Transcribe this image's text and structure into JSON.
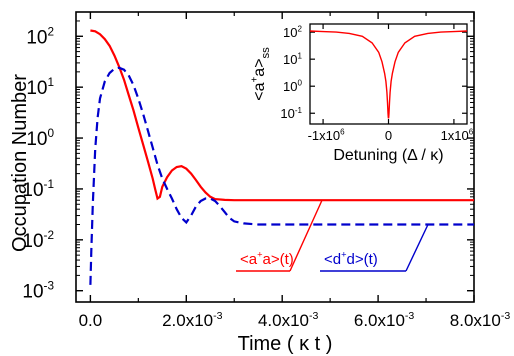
{
  "chart_data": [
    {
      "type": "line",
      "scale": "log-y",
      "xlabel": "Time ( κ t )",
      "ylabel": "Occupation Number",
      "xlim": [
        -0.0003,
        0.008
      ],
      "ylim": [
        0.0006,
        300
      ],
      "xticks": [
        0,
        0.002,
        0.004,
        0.006,
        0.008
      ],
      "xtick_labels": [
        "0.0",
        "2.0x10",
        "4.0x10",
        "6.0x10",
        "8.0x10"
      ],
      "xtick_exp": [
        "",
        "-3",
        "-3",
        "-3",
        "-3"
      ],
      "yticks": [
        0.001,
        0.01,
        0.1,
        1,
        10,
        100
      ],
      "ytick_exp": [
        "-3",
        "-2",
        "-1",
        "0",
        "1",
        "2"
      ],
      "series": [
        {
          "name": "<a+a>(t)",
          "color": "#ff0000",
          "style": "solid",
          "points": [
            [
              0,
              130
            ],
            [
              0.0001,
              125
            ],
            [
              0.0002,
              110
            ],
            [
              0.0003,
              88
            ],
            [
              0.0004,
              65
            ],
            [
              0.0005,
              42
            ],
            [
              0.0006,
              25
            ],
            [
              0.0007,
              14
            ],
            [
              0.0008,
              7
            ],
            [
              0.0009,
              3.5
            ],
            [
              0.001,
              1.6
            ],
            [
              0.0011,
              0.75
            ],
            [
              0.0012,
              0.35
            ],
            [
              0.0013,
              0.16
            ],
            [
              0.00135,
              0.1
            ],
            [
              0.0014,
              0.065
            ],
            [
              0.00145,
              0.07
            ],
            [
              0.0015,
              0.11
            ],
            [
              0.0016,
              0.17
            ],
            [
              0.0017,
              0.23
            ],
            [
              0.0018,
              0.27
            ],
            [
              0.0019,
              0.28
            ],
            [
              0.002,
              0.25
            ],
            [
              0.0021,
              0.2
            ],
            [
              0.0022,
              0.15
            ],
            [
              0.0023,
              0.11
            ],
            [
              0.0024,
              0.085
            ],
            [
              0.0025,
              0.07
            ],
            [
              0.0026,
              0.063
            ],
            [
              0.0028,
              0.061
            ],
            [
              0.003,
              0.06
            ],
            [
              0.008,
              0.06
            ]
          ],
          "label_text": "<a",
          "label_sup": "+",
          "label_rest": "a>(t)"
        },
        {
          "name": "<d+d>(t)",
          "color": "#0000cc",
          "style": "dashed",
          "points": [
            [
              0,
              0.0013
            ],
            [
              2e-05,
              0.006
            ],
            [
              5e-05,
              0.05
            ],
            [
              0.0001,
              0.6
            ],
            [
              0.00015,
              2.5
            ],
            [
              0.0002,
              6
            ],
            [
              0.0003,
              13
            ],
            [
              0.0004,
              19
            ],
            [
              0.0005,
              23
            ],
            [
              0.0006,
              24
            ],
            [
              0.0007,
              22
            ],
            [
              0.0008,
              17
            ],
            [
              0.0009,
              11
            ],
            [
              0.001,
              6
            ],
            [
              0.0011,
              3
            ],
            [
              0.0012,
              1.4
            ],
            [
              0.0013,
              0.65
            ],
            [
              0.0014,
              0.3
            ],
            [
              0.0015,
              0.16
            ],
            [
              0.0016,
              0.1
            ],
            [
              0.0017,
              0.065
            ],
            [
              0.0018,
              0.04
            ],
            [
              0.0019,
              0.027
            ],
            [
              0.002,
              0.022
            ],
            [
              0.0021,
              0.03
            ],
            [
              0.0022,
              0.045
            ],
            [
              0.0023,
              0.058
            ],
            [
              0.0024,
              0.065
            ],
            [
              0.0025,
              0.065
            ],
            [
              0.0026,
              0.058
            ],
            [
              0.0027,
              0.046
            ],
            [
              0.0028,
              0.035
            ],
            [
              0.0029,
              0.027
            ],
            [
              0.003,
              0.023
            ],
            [
              0.0032,
              0.021
            ],
            [
              0.0035,
              0.02
            ],
            [
              0.008,
              0.02
            ]
          ],
          "label_text": "<d",
          "label_sup": "+",
          "label_rest": "d>(t)"
        }
      ]
    },
    {
      "type": "line",
      "scale": "log-y",
      "inset": true,
      "xlabel": "Detuning (Δ / κ)",
      "ylabel_main": "<a",
      "ylabel_sup": "+",
      "ylabel_rest": "a>",
      "ylabel_sub": "ss",
      "xlim": [
        -1200000,
        1200000
      ],
      "ylim": [
        0.04,
        200
      ],
      "xticks": [
        -1000000,
        0,
        1000000
      ],
      "xtick_labels": [
        "-1x10",
        "0",
        "1x10"
      ],
      "xtick_exp": [
        "6",
        "",
        "6"
      ],
      "yticks": [
        0.1,
        1,
        10,
        100
      ],
      "ytick_exp": [
        "-1",
        "0",
        "1",
        "2"
      ],
      "series": [
        {
          "color": "#ff0000",
          "points": [
            [
              -1200000,
              110
            ],
            [
              -1000000,
              105
            ],
            [
              -800000,
              100
            ],
            [
              -600000,
              90
            ],
            [
              -400000,
              70
            ],
            [
              -250000,
              40
            ],
            [
              -150000,
              18
            ],
            [
              -100000,
              8
            ],
            [
              -60000,
              3
            ],
            [
              -40000,
              1.5
            ],
            [
              -25000,
              0.6
            ],
            [
              -15000,
              0.25
            ],
            [
              -8000,
              0.1
            ],
            [
              -3000,
              0.07
            ],
            [
              0,
              0.065
            ],
            [
              3000,
              0.07
            ],
            [
              8000,
              0.1
            ],
            [
              15000,
              0.25
            ],
            [
              25000,
              0.6
            ],
            [
              40000,
              1.5
            ],
            [
              60000,
              3
            ],
            [
              100000,
              8
            ],
            [
              150000,
              18
            ],
            [
              250000,
              40
            ],
            [
              400000,
              70
            ],
            [
              600000,
              90
            ],
            [
              800000,
              100
            ],
            [
              1000000,
              105
            ],
            [
              1200000,
              110
            ]
          ]
        }
      ]
    }
  ]
}
